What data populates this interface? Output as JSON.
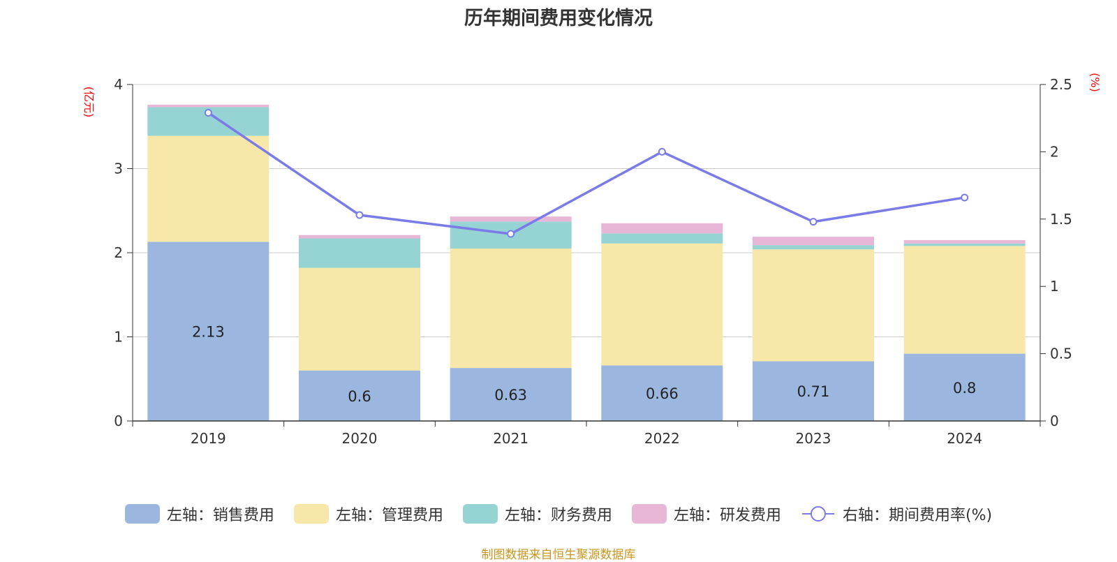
{
  "chart_data": {
    "type": "bar",
    "title": "历年期间费用变化情况",
    "categories": [
      "2019",
      "2020",
      "2021",
      "2022",
      "2023",
      "2024"
    ],
    "left_axis": {
      "unit": "(亿元)",
      "ylim": [
        0,
        4
      ],
      "ticks": [
        "0",
        "1",
        "2",
        "3",
        "4"
      ]
    },
    "right_axis": {
      "unit": "(%)",
      "ylim": [
        0,
        2.5
      ],
      "ticks": [
        "0",
        "0.5",
        "1",
        "1.5",
        "2",
        "2.5"
      ]
    },
    "series": [
      {
        "name": "左轴：销售费用",
        "type": "bar",
        "axis": "left",
        "color": "#9bb7e0",
        "values": [
          2.13,
          0.6,
          0.63,
          0.66,
          0.71,
          0.8
        ],
        "show_labels": true
      },
      {
        "name": "左轴：管理费用",
        "type": "bar",
        "axis": "left",
        "color": "#f7e7a8",
        "values": [
          1.26,
          1.22,
          1.42,
          1.45,
          1.33,
          1.28
        ]
      },
      {
        "name": "左轴：财务费用",
        "type": "bar",
        "axis": "left",
        "color": "#96d4d4",
        "values": [
          0.34,
          0.35,
          0.32,
          0.12,
          0.05,
          0.03
        ]
      },
      {
        "name": "左轴：研发费用",
        "type": "bar",
        "axis": "left",
        "color": "#e8b7d8",
        "values": [
          0.03,
          0.04,
          0.06,
          0.12,
          0.1,
          0.04
        ]
      },
      {
        "name": "右轴：期间费用率(%)",
        "type": "line",
        "axis": "right",
        "color": "#7b7be8",
        "values": [
          2.29,
          1.53,
          1.39,
          2.0,
          1.48,
          1.66
        ]
      }
    ],
    "grid": true,
    "legend_position": "bottom"
  },
  "source": "制图数据来自恒生聚源数据库"
}
